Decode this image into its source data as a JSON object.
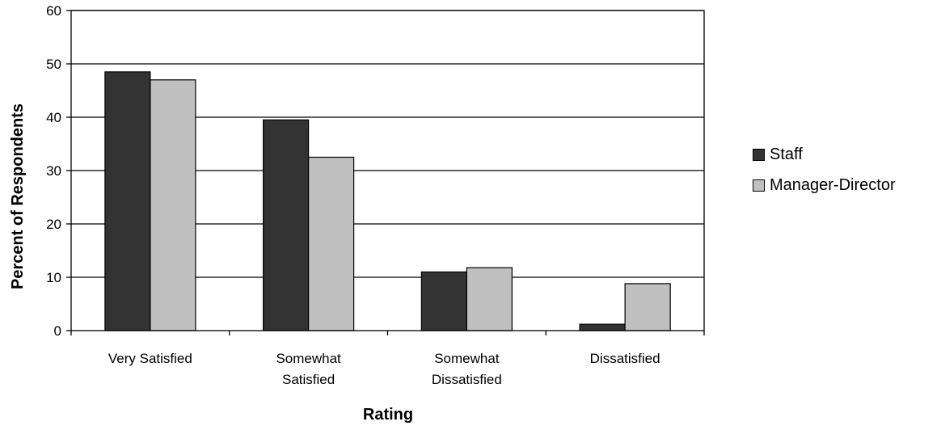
{
  "chart_data": {
    "type": "bar",
    "categories": [
      [
        "Very Satisfied"
      ],
      [
        "Somewhat",
        "Satisfied"
      ],
      [
        "Somewhat",
        "Dissatisfied"
      ],
      [
        "Dissatisfied"
      ]
    ],
    "series": [
      {
        "name": "Staff",
        "values": [
          48.5,
          39.5,
          11,
          1.2
        ],
        "color": "#333333"
      },
      {
        "name": "Manager-Director",
        "values": [
          47,
          32.5,
          11.8,
          8.8
        ],
        "color": "#c0c0c0"
      }
    ],
    "xlabel": "Rating",
    "ylabel": "Percent of Respondents",
    "ylim": [
      0,
      60
    ],
    "yticks": [
      0,
      10,
      20,
      30,
      40,
      50,
      60
    ],
    "grid": true,
    "legend_position": "right"
  }
}
